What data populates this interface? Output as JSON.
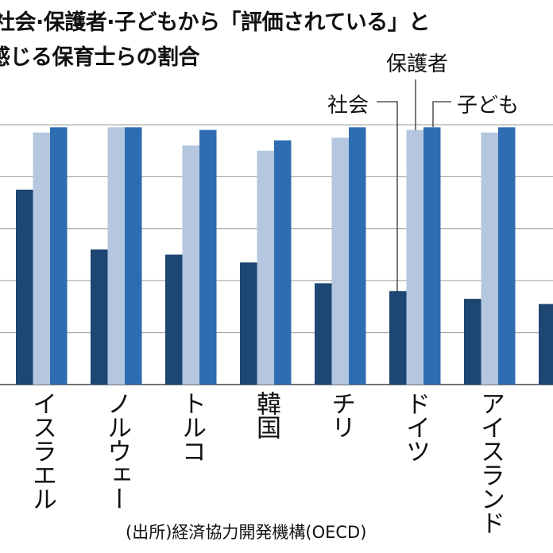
{
  "chart_data": {
    "type": "bar",
    "title_lines": [
      "社会·保護者·子どもから「評価されている」と",
      "感じる保育士らの割合"
    ],
    "categories": [
      "イスラエル",
      "ノルウェー",
      "トルコ",
      "韓国",
      "チリ",
      "ドイツ",
      "アイスランド",
      ""
    ],
    "series": [
      {
        "name": "社会",
        "color": "#1d4672",
        "values": [
          75,
          52,
          50,
          47,
          39,
          36,
          33,
          31
        ]
      },
      {
        "name": "保護者",
        "color": "#b4c7df",
        "values": [
          97,
          99,
          92,
          90,
          95,
          98,
          97,
          null
        ]
      },
      {
        "name": "子ども",
        "color": "#2f6db3",
        "values": [
          99,
          99,
          98,
          94,
          99,
          99,
          99,
          null
        ]
      }
    ],
    "ylim": [
      0,
      100
    ],
    "yticks": [
      0,
      20,
      40,
      60,
      80,
      100
    ],
    "grid": true,
    "legend": "callout labels above the ドイツ bars",
    "source": "(出所)経済協力開発機構(OECD)"
  }
}
